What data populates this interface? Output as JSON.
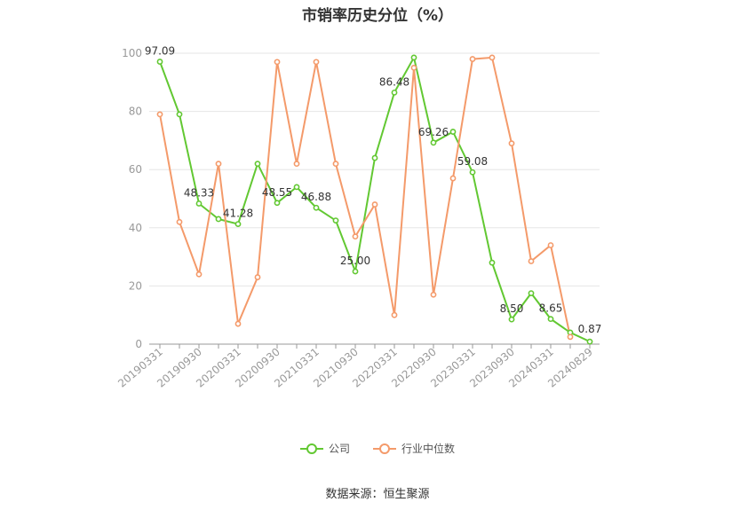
{
  "chart_data": {
    "type": "line",
    "title": "市销率历史分位（%）",
    "source": "数据来源：恒生聚源",
    "ylim": [
      0,
      100
    ],
    "yticks": [
      0,
      20,
      40,
      60,
      80,
      100
    ],
    "xtick_labels": [
      "20190331",
      "20190930",
      "20200331",
      "20200930",
      "20210331",
      "20210930",
      "20220331",
      "20220930",
      "20230331",
      "20230930",
      "20240331",
      "20240829"
    ],
    "series": [
      {
        "name": "公司",
        "color": "#62c832",
        "values": [
          97.09,
          79,
          48.33,
          43,
          41.28,
          62,
          48.55,
          54,
          46.88,
          42.5,
          25.0,
          64,
          86.48,
          98.5,
          69.26,
          73,
          59.08,
          28,
          8.5,
          17.5,
          8.65,
          4,
          0.87
        ],
        "labels": [
          "97.09",
          null,
          "48.33",
          null,
          "41.28",
          null,
          "48.55",
          null,
          "46.88",
          null,
          "25.00",
          null,
          "86.48",
          null,
          "69.26",
          null,
          "59.08",
          null,
          "8.50",
          null,
          "8.65",
          null,
          "0.87"
        ]
      },
      {
        "name": "行业中位数",
        "color": "#f49a6a",
        "values": [
          79,
          42,
          24,
          62,
          7,
          23,
          97,
          62,
          97,
          62,
          37,
          48,
          10,
          95,
          17,
          57,
          98,
          98.5,
          69,
          28.5,
          34,
          2.5,
          null
        ]
      }
    ]
  }
}
